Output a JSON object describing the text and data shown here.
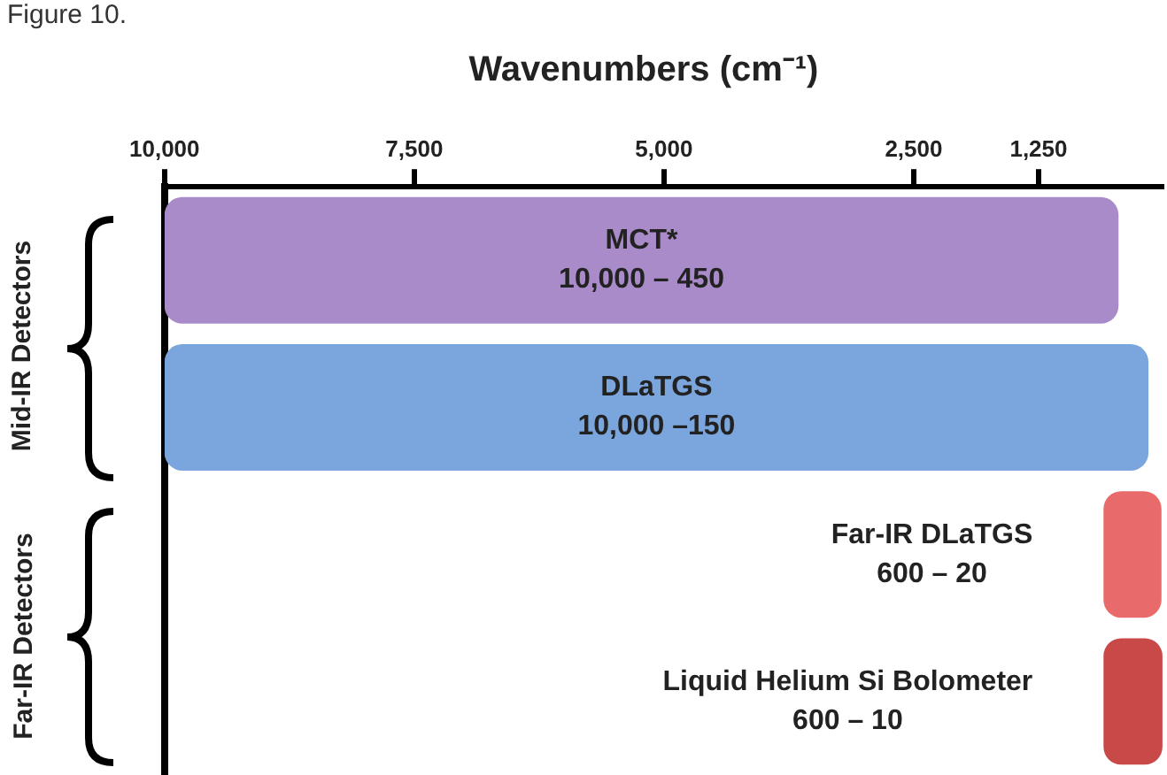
{
  "chart_data": {
    "type": "bar",
    "orientation": "horizontal",
    "xlabel": "Wavenumbers (cm⁻¹)",
    "annotations": [
      "Figure 10.",
      "Mid-IR Detectors",
      "Far-IR Detectors",
      "10,000 – 450",
      "10,000 –150",
      "600 – 20",
      "600 – 10"
    ],
    "categories": [
      "MCT*",
      "DLaTGS",
      "Far-IR DLaTGS",
      "Liquid Helium Si Bolometer"
    ],
    "base": [
      10000,
      10000,
      600,
      600
    ],
    "values": [
      -9550,
      -9850,
      -580,
      -590
    ],
    "colors": [
      "#a98bc9",
      "#7aa6dd",
      "#e86a6a",
      "#c94848"
    ],
    "xlim": [
      10000,
      0
    ],
    "xticks": [
      {
        "value": 10000,
        "label": "10,000"
      },
      {
        "value": 7500,
        "label": "7,500"
      },
      {
        "value": 5000,
        "label": "5,000"
      },
      {
        "value": 2500,
        "label": "2,500"
      },
      {
        "value": 1250,
        "label": "1,250"
      }
    ],
    "grid": false,
    "legend": false,
    "tick_labels": "x"
  }
}
